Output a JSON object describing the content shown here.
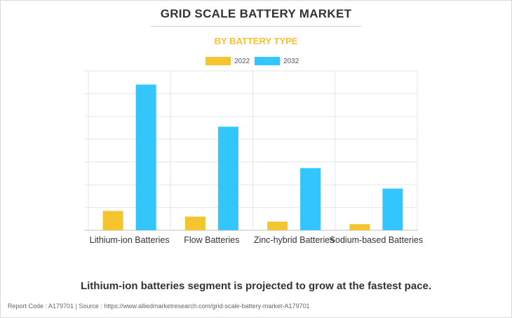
{
  "header": {
    "title": "GRID SCALE BATTERY MARKET",
    "subtitle": "BY BATTERY TYPE"
  },
  "footer": {
    "headline": "Lithium-ion batteries segment is projected to grow at the fastest pace.",
    "source": "Report Code : A179701  |  Source : https://www.alliedmarketresearch.com/grid-scale-battery-market-A179701"
  },
  "colors": {
    "series_2022": "#f5c530",
    "series_2032": "#33c6fc",
    "grid": "#e6e6e6",
    "baseline": "#bfbfbf",
    "title": "#333333",
    "subtitle": "#f5c030"
  },
  "chart_data": {
    "type": "bar",
    "title": "GRID SCALE BATTERY MARKET",
    "subtitle": "BY BATTERY TYPE",
    "categories": [
      "Lithium-ion Batteries",
      "Flow Batteries",
      "Zinc-hybrid Batteries",
      "Sodium-based Batteries"
    ],
    "series": [
      {
        "name": "2022",
        "values": [
          0.85,
          0.6,
          0.38,
          0.27
        ]
      },
      {
        "name": "2032",
        "values": [
          6.4,
          4.55,
          2.73,
          1.83
        ]
      }
    ],
    "ylim": [
      0,
      7
    ],
    "y_tick_step": 1,
    "y_axis_labels_shown": false,
    "grid": true,
    "legend_position": "top-center"
  }
}
